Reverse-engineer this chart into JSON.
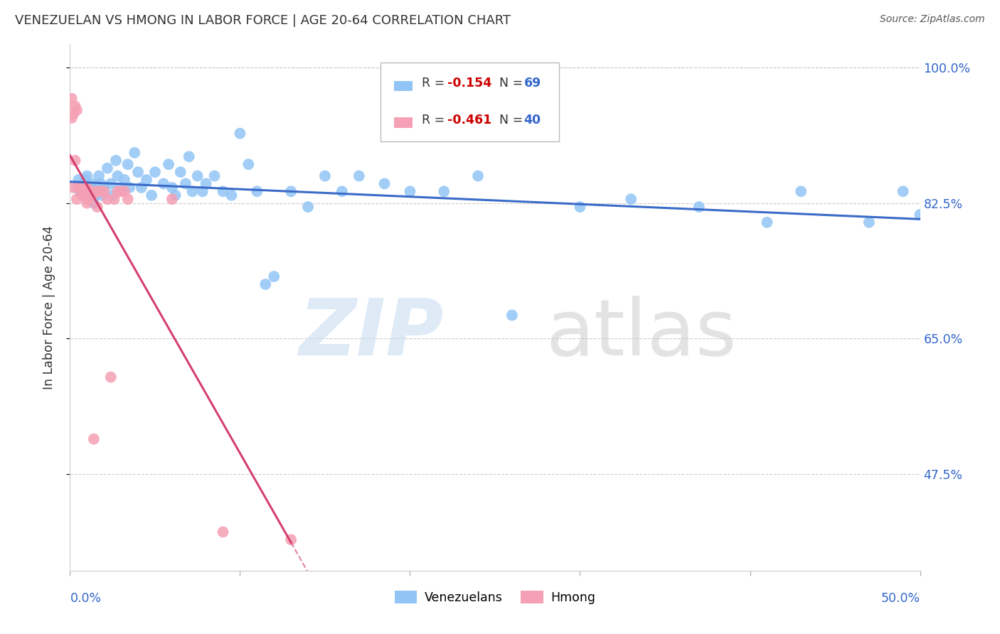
{
  "title": "VENEZUELAN VS HMONG IN LABOR FORCE | AGE 20-64 CORRELATION CHART",
  "source": "Source: ZipAtlas.com",
  "ylabel": "In Labor Force | Age 20-64",
  "xlim": [
    0.0,
    0.5
  ],
  "ylim": [
    0.35,
    1.03
  ],
  "yticks": [
    0.475,
    0.65,
    0.825,
    1.0
  ],
  "ytick_labels": [
    "47.5%",
    "65.0%",
    "82.5%",
    "100.0%"
  ],
  "venezuelan_color": "#92C5F5",
  "hmong_color": "#F5A0B4",
  "trend_venezuelan_color": "#3A6BC8",
  "trend_hmong_color": "#D44070",
  "venezuelan_x": [
    0.004,
    0.005,
    0.006,
    0.007,
    0.008,
    0.009,
    0.01,
    0.011,
    0.012,
    0.013,
    0.014,
    0.015,
    0.016,
    0.017,
    0.018,
    0.019,
    0.02,
    0.022,
    0.024,
    0.025,
    0.027,
    0.028,
    0.03,
    0.032,
    0.034,
    0.035,
    0.038,
    0.04,
    0.042,
    0.045,
    0.048,
    0.05,
    0.055,
    0.058,
    0.06,
    0.062,
    0.065,
    0.068,
    0.07,
    0.072,
    0.075,
    0.078,
    0.08,
    0.085,
    0.09,
    0.095,
    0.1,
    0.105,
    0.11,
    0.115,
    0.12,
    0.13,
    0.14,
    0.15,
    0.16,
    0.17,
    0.185,
    0.2,
    0.22,
    0.24,
    0.26,
    0.3,
    0.33,
    0.37,
    0.41,
    0.43,
    0.47,
    0.49,
    0.5
  ],
  "venezuelan_y": [
    0.845,
    0.855,
    0.84,
    0.845,
    0.85,
    0.855,
    0.86,
    0.835,
    0.845,
    0.85,
    0.825,
    0.835,
    0.845,
    0.86,
    0.85,
    0.835,
    0.845,
    0.87,
    0.85,
    0.835,
    0.88,
    0.86,
    0.845,
    0.855,
    0.875,
    0.845,
    0.89,
    0.865,
    0.845,
    0.855,
    0.835,
    0.865,
    0.85,
    0.875,
    0.845,
    0.835,
    0.865,
    0.85,
    0.885,
    0.84,
    0.86,
    0.84,
    0.85,
    0.86,
    0.84,
    0.835,
    0.915,
    0.875,
    0.84,
    0.72,
    0.73,
    0.84,
    0.82,
    0.86,
    0.84,
    0.86,
    0.85,
    0.84,
    0.84,
    0.86,
    0.68,
    0.82,
    0.83,
    0.82,
    0.8,
    0.84,
    0.8,
    0.84,
    0.81
  ],
  "hmong_x": [
    0.001,
    0.001,
    0.002,
    0.002,
    0.003,
    0.003,
    0.004,
    0.004,
    0.005,
    0.005,
    0.006,
    0.006,
    0.007,
    0.007,
    0.008,
    0.008,
    0.009,
    0.009,
    0.01,
    0.01,
    0.011,
    0.011,
    0.012,
    0.013,
    0.014,
    0.015,
    0.016,
    0.017,
    0.018,
    0.02,
    0.022,
    0.024,
    0.026,
    0.028,
    0.03,
    0.032,
    0.034,
    0.06,
    0.09,
    0.13
  ],
  "hmong_y": [
    0.96,
    0.935,
    0.94,
    0.845,
    0.95,
    0.88,
    0.945,
    0.83,
    0.845,
    0.845,
    0.845,
    0.845,
    0.845,
    0.835,
    0.84,
    0.835,
    0.845,
    0.84,
    0.845,
    0.825,
    0.83,
    0.83,
    0.84,
    0.835,
    0.52,
    0.84,
    0.82,
    0.84,
    0.84,
    0.84,
    0.83,
    0.6,
    0.83,
    0.84,
    0.84,
    0.84,
    0.83,
    0.83,
    0.4,
    0.39
  ],
  "hmong_trend_x_solid_end": 0.13,
  "hmong_trend_x_dash_end": 0.21
}
